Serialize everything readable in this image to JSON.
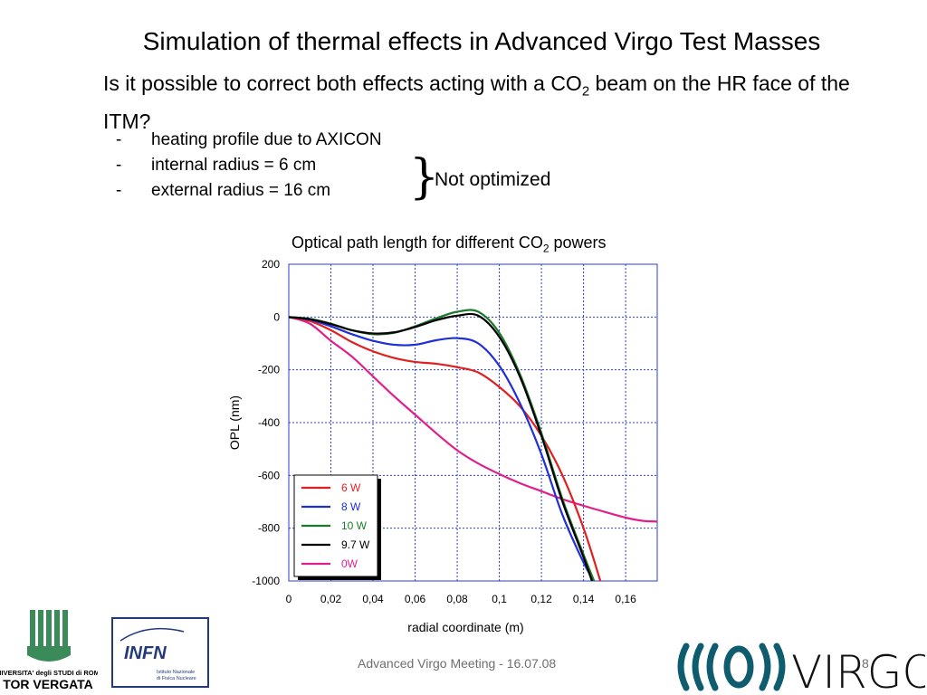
{
  "slide": {
    "title": "Simulation of thermal effects in Advanced Virgo Test Masses",
    "question_pre": "Is it possible to correct both effects acting with a CO",
    "question_sub": "2",
    "question_post": " beam on the HR face of the ITM?",
    "bullets": [
      {
        "dash": "-",
        "text": "heating profile due to AXICON"
      },
      {
        "dash": "-",
        "text": "internal radius = 6 cm"
      },
      {
        "dash": "-",
        "text": "external radius = 16 cm"
      }
    ],
    "brace": "}",
    "brace_label": "Not optimized",
    "chart_title_pre": "Optical path length for different CO",
    "chart_title_sub": "2",
    "chart_title_post": " powers",
    "footer": "Advanced Virgo Meeting - 16.07.08",
    "page_number": "8"
  },
  "logos": {
    "tor_vergata_line1": "UNIVERSITA' degli STUDI di ROMA",
    "tor_vergata_line2": "TOR VERGATA",
    "infn_text": "INFN",
    "infn_sub1": "Istituto Nazionale",
    "infn_sub2": "di Fisica Nucleare",
    "virgo_text": "VIRGO",
    "colors": {
      "tor_vergata": "#3a8a5a",
      "infn": "#233a7a",
      "virgo": "#0e5c6e"
    }
  },
  "chart_data": {
    "type": "line",
    "title": "",
    "xlabel": "radial coordinate (m)",
    "ylabel": "OPL (nm)",
    "xlim": [
      0,
      0.175
    ],
    "ylim": [
      -1000,
      200
    ],
    "xticks": [
      0,
      0.02,
      0.04,
      0.06,
      0.08,
      0.1,
      0.12,
      0.14,
      0.16
    ],
    "xtick_labels": [
      "0",
      "0,02",
      "0,04",
      "0,06",
      "0,08",
      "0,1",
      "0,12",
      "0,14",
      "0,16"
    ],
    "yticks": [
      200,
      0,
      -200,
      -400,
      -600,
      -800,
      -1000
    ],
    "ytick_labels": [
      "200",
      "0",
      "-200",
      "-400",
      "-600",
      "-800",
      "-1000"
    ],
    "grid": true,
    "legend_position": "bottom-left",
    "series": [
      {
        "name": "6 W",
        "color": "#e02020",
        "x": [
          0,
          0.01,
          0.02,
          0.03,
          0.04,
          0.05,
          0.06,
          0.07,
          0.08,
          0.09,
          0.1,
          0.11,
          0.12,
          0.13,
          0.14,
          0.148
        ],
        "y": [
          0,
          -15,
          -50,
          -95,
          -130,
          -155,
          -170,
          -177,
          -190,
          -210,
          -265,
          -340,
          -450,
          -600,
          -800,
          -1000
        ]
      },
      {
        "name": "8 W",
        "color": "#1e2fd8",
        "x": [
          0,
          0.01,
          0.02,
          0.03,
          0.04,
          0.05,
          0.06,
          0.07,
          0.08,
          0.09,
          0.1,
          0.11,
          0.12,
          0.13,
          0.14,
          0.145
        ],
        "y": [
          0,
          -10,
          -35,
          -65,
          -90,
          -105,
          -105,
          -88,
          -80,
          -100,
          -185,
          -330,
          -520,
          -750,
          -930,
          -1000
        ]
      },
      {
        "name": "10 W",
        "color": "#1e7a2a",
        "x": [
          0,
          0.01,
          0.02,
          0.03,
          0.04,
          0.05,
          0.06,
          0.07,
          0.08,
          0.09,
          0.1,
          0.11,
          0.12,
          0.13,
          0.14,
          0.145
        ],
        "y": [
          0,
          -7,
          -25,
          -50,
          -65,
          -60,
          -35,
          -5,
          20,
          20,
          -60,
          -220,
          -440,
          -690,
          -900,
          -1000
        ]
      },
      {
        "name": "9.7 W",
        "color": "#000000",
        "x": [
          0,
          0.01,
          0.02,
          0.03,
          0.04,
          0.05,
          0.06,
          0.07,
          0.08,
          0.09,
          0.1,
          0.11,
          0.12,
          0.13,
          0.14,
          0.144
        ],
        "y": [
          0,
          -8,
          -27,
          -50,
          -62,
          -58,
          -38,
          -12,
          5,
          5,
          -75,
          -230,
          -450,
          -700,
          -910,
          -1000
        ]
      },
      {
        "name": "0W",
        "color": "#e0208a",
        "x": [
          0,
          0.01,
          0.02,
          0.03,
          0.04,
          0.05,
          0.06,
          0.07,
          0.08,
          0.09,
          0.1,
          0.11,
          0.12,
          0.13,
          0.14,
          0.15,
          0.16,
          0.168,
          0.175
        ],
        "y": [
          0,
          -25,
          -90,
          -150,
          -225,
          -300,
          -370,
          -440,
          -505,
          -555,
          -595,
          -630,
          -660,
          -690,
          -715,
          -738,
          -760,
          -772,
          -775
        ]
      }
    ]
  }
}
